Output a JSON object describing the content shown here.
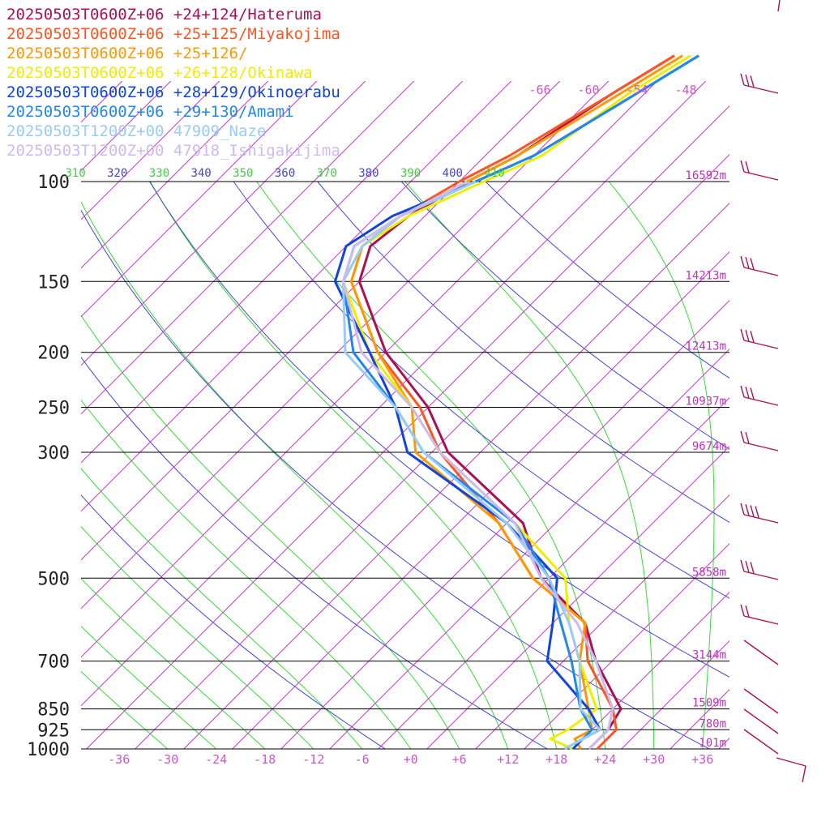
{
  "chart_data": {
    "type": "line",
    "chart_kind": "skew-T log-p sounding",
    "pressure_levels": [
      100,
      150,
      200,
      250,
      300,
      500,
      700,
      850,
      925,
      1000
    ],
    "pressure_labels": [
      "100",
      "150",
      "200",
      "250",
      "300",
      "500",
      "700",
      "850",
      "925",
      "1000"
    ],
    "height_labels": [
      {
        "p": 100,
        "label": "16592m"
      },
      {
        "p": 150,
        "label": "14213m"
      },
      {
        "p": 200,
        "label": "12413m"
      },
      {
        "p": 250,
        "label": "10937m"
      },
      {
        "p": 300,
        "label": "9674m"
      },
      {
        "p": 500,
        "label": "5858m"
      },
      {
        "p": 700,
        "label": "3144m"
      },
      {
        "p": 850,
        "label": "1509m"
      },
      {
        "p": 925,
        "label": "780m"
      },
      {
        "p": 1000,
        "label": "101m"
      }
    ],
    "x_ticks": [
      -36,
      -30,
      -24,
      -18,
      -12,
      -6,
      0,
      6,
      12,
      18,
      24,
      30,
      36
    ],
    "x_tick_labels": [
      "-36",
      "-30",
      "-24",
      "-18",
      "-12",
      "-6",
      "+0",
      "+6",
      "+12",
      "+18",
      "+24",
      "+30",
      "+36"
    ],
    "theta_labels": [
      "310",
      "320",
      "330",
      "340",
      "350",
      "360",
      "370",
      "380",
      "390",
      "400",
      "410"
    ],
    "isotherm_top_labels": [
      "-66",
      "-60",
      "-54",
      "-48"
    ],
    "xlim": [
      -40,
      40
    ],
    "ylim": [
      1000,
      100
    ],
    "yscale": "log",
    "grid": true,
    "legend_position": "top-left",
    "colors": {
      "pressure_lines": "#000000",
      "isotherms": "#cc33cc",
      "dry_adiabats": "#4444dd",
      "moist_adiabats": "#33dd33",
      "barbs": "#aa1155"
    },
    "series": [
      {
        "name": "20250503T0600Z+06 +24+124/Hateruma",
        "color": "#aa1155",
        "p": [
          1000,
          960,
          925,
          850,
          700,
          600,
          500,
          400,
          300,
          250,
          200,
          150,
          130,
          115,
          100,
          90,
          70,
          60
        ],
        "t": [
          22,
          22,
          22,
          21,
          12,
          6,
          -5,
          -14,
          -32,
          -40,
          -52,
          -64,
          -67,
          -66,
          -63,
          -60,
          -56,
          -53
        ]
      },
      {
        "name": "20250503T0600Z+06 +25+125/Miyakojima",
        "color": "#ff5522",
        "p": [
          1000,
          960,
          925,
          850,
          700,
          600,
          500,
          400,
          300,
          250,
          200,
          150,
          130,
          115,
          100,
          90,
          70,
          60
        ],
        "t": [
          23,
          23,
          23,
          20,
          11,
          6,
          -6,
          -17,
          -33,
          -41,
          -53,
          -65,
          -68,
          -67,
          -64,
          -61,
          -56,
          -53
        ]
      },
      {
        "name": "20250503T0600Z+06 +25+126/",
        "color": "#ff9900",
        "p": [
          1000,
          960,
          925,
          850,
          700,
          600,
          500,
          400,
          300,
          250,
          200,
          150,
          130,
          115,
          100,
          90,
          70,
          60
        ],
        "t": [
          21,
          19,
          20,
          17,
          10,
          6,
          -6,
          -17,
          -36,
          -42,
          -53,
          -65,
          -68,
          -67,
          -63,
          -60,
          -55,
          -52
        ]
      },
      {
        "name": "20250503T0600Z+06 +26+128/Okinawa",
        "color": "#eeee00",
        "p": [
          1000,
          960,
          925,
          850,
          700,
          600,
          500,
          400,
          300,
          250,
          200,
          150,
          130,
          115,
          100,
          90,
          70,
          60
        ],
        "t": [
          20,
          16,
          17,
          18,
          10,
          4,
          -2,
          -15,
          -33,
          -42,
          -54,
          -66,
          -68,
          -66,
          -61,
          -57,
          -54,
          -51
        ]
      },
      {
        "name": "20250503T0600Z+06 +28+129/Okinoerabu",
        "color": "#1144dd",
        "p": [
          1000,
          960,
          925,
          850,
          700,
          600,
          500,
          400,
          300,
          250,
          200,
          150,
          130,
          115,
          100,
          90,
          70,
          60
        ],
        "t": [
          20,
          20,
          21,
          17,
          6,
          2,
          -3,
          -16,
          -37,
          -44,
          -54,
          -67,
          -70,
          -68,
          -62,
          -58,
          -53,
          -50
        ]
      },
      {
        "name": "20250503T0600Z+06 +29+130/Amami",
        "color": "#2288ee",
        "p": [
          1000,
          960,
          925,
          850,
          700,
          600,
          500,
          400,
          300,
          250,
          200,
          150,
          130,
          115,
          100,
          90,
          70,
          60
        ],
        "t": [
          19,
          20,
          20,
          16,
          9,
          3,
          -4,
          -15,
          -35,
          -44,
          -56,
          -66,
          -69,
          -67,
          -62,
          -58,
          -53,
          -50
        ]
      },
      {
        "name": "20250503T1200Z+00 47909_Naze",
        "color": "#99ccf5",
        "p": [
          1000,
          925,
          850,
          700,
          600,
          500,
          400,
          300,
          250,
          200,
          150,
          130,
          115,
          100
        ],
        "t": [
          19,
          21,
          16,
          10,
          4,
          -4,
          -16,
          -35,
          -44,
          -57,
          -66,
          -68,
          -67,
          -62
        ]
      },
      {
        "name": "20250503T1200Z+00 47918_Ishigakijima",
        "color": "#ccbbee",
        "p": [
          1000,
          925,
          850,
          700,
          600,
          500,
          400,
          300,
          250,
          200,
          150,
          130,
          115,
          100
        ],
        "t": [
          22,
          22,
          20,
          12,
          5,
          -5,
          -15,
          -33,
          -42,
          -55,
          -66,
          -69,
          -67,
          -63
        ]
      }
    ]
  }
}
